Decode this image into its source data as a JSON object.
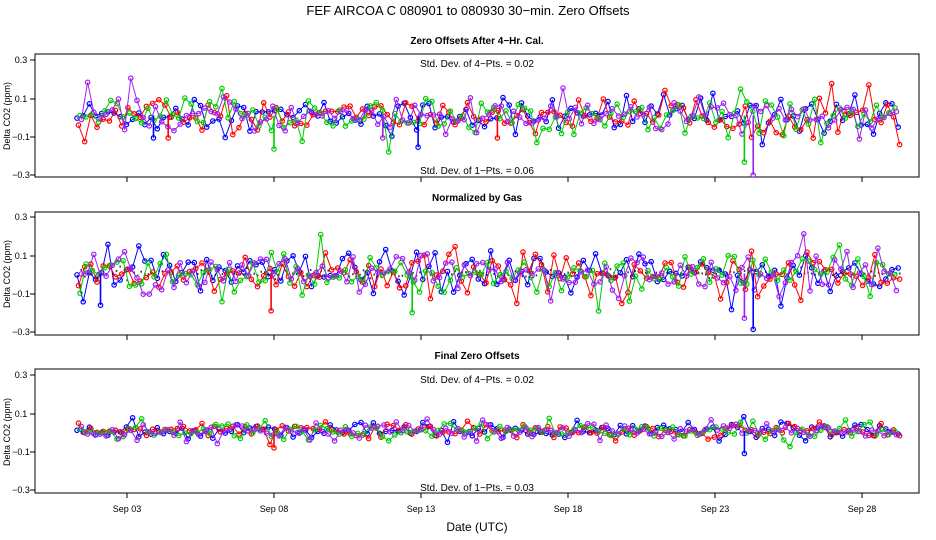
{
  "figure": {
    "title": "FEF   AIRCOA C   080901 to 080930   30−min. Zero Offsets",
    "xlabel": "Date (UTC)",
    "x_ticks": [
      "Sep 03",
      "Sep 08",
      "Sep 13",
      "Sep 18",
      "Sep 23",
      "Sep 28"
    ],
    "y_ticks": [
      "0.3",
      "0.1",
      "−0.1",
      "−0.3"
    ]
  },
  "chart_data": [
    {
      "type": "scatter",
      "title": "Zero Offsets After 4−Hr. Cal.",
      "ylabel": "Delta CO2 (ppm)",
      "xlabel": "",
      "x_range_days": [
        1.3,
        29.3
      ],
      "ylim": [
        -0.33,
        0.33
      ],
      "series_colors": [
        "#0000ff",
        "#ff0000",
        "#00cc00",
        "#a020f0"
      ],
      "spread": 0.045,
      "spike_days": [
        3.9,
        4.4,
        8.0,
        11.7,
        12.9,
        15.6,
        24.0,
        24.3
      ],
      "spike_values": [
        -0.12,
        -0.12,
        -0.18,
        -0.12,
        -0.17,
        -0.12,
        -0.25,
        -0.32
      ],
      "annotation_top": "Std. Dev. of 4−Pts. =  0.02",
      "annotation_bottom": "Std. Dev. of 1−Pts. =  0.06",
      "has_black_reference": false
    },
    {
      "type": "scatter",
      "title": "Normalized by Gas",
      "ylabel": "Delta CO2 (ppm)",
      "xlabel": "",
      "x_range_days": [
        1.3,
        29.3
      ],
      "ylim": [
        -0.33,
        0.33
      ],
      "series_colors": [
        "#0000ff",
        "#ff0000",
        "#00cc00",
        "#a020f0"
      ],
      "spread": 0.055,
      "spike_days": [
        2.1,
        7.9,
        12.7,
        24.0,
        24.3
      ],
      "spike_values": [
        -0.17,
        -0.2,
        -0.21,
        -0.24,
        -0.3
      ],
      "annotation_top": "",
      "annotation_bottom": "",
      "has_black_reference": true
    },
    {
      "type": "scatter",
      "title": "Final Zero Offsets",
      "ylabel": "Delta CO2 (ppm)",
      "xlabel": "Date (UTC)",
      "x_range_days": [
        1.3,
        29.3
      ],
      "ylim": [
        -0.33,
        0.33
      ],
      "series_colors": [
        "#0000ff",
        "#ff0000",
        "#00cc00",
        "#a020f0"
      ],
      "spread": 0.02,
      "spike_days": [
        24.0,
        8.0
      ],
      "spike_values": [
        -0.12,
        -0.09
      ],
      "annotation_top": "Std. Dev. of 4−Pts. =  0.02",
      "annotation_bottom": "Std. Dev. of 1−Pts. =  0.03",
      "has_black_reference": false
    }
  ]
}
